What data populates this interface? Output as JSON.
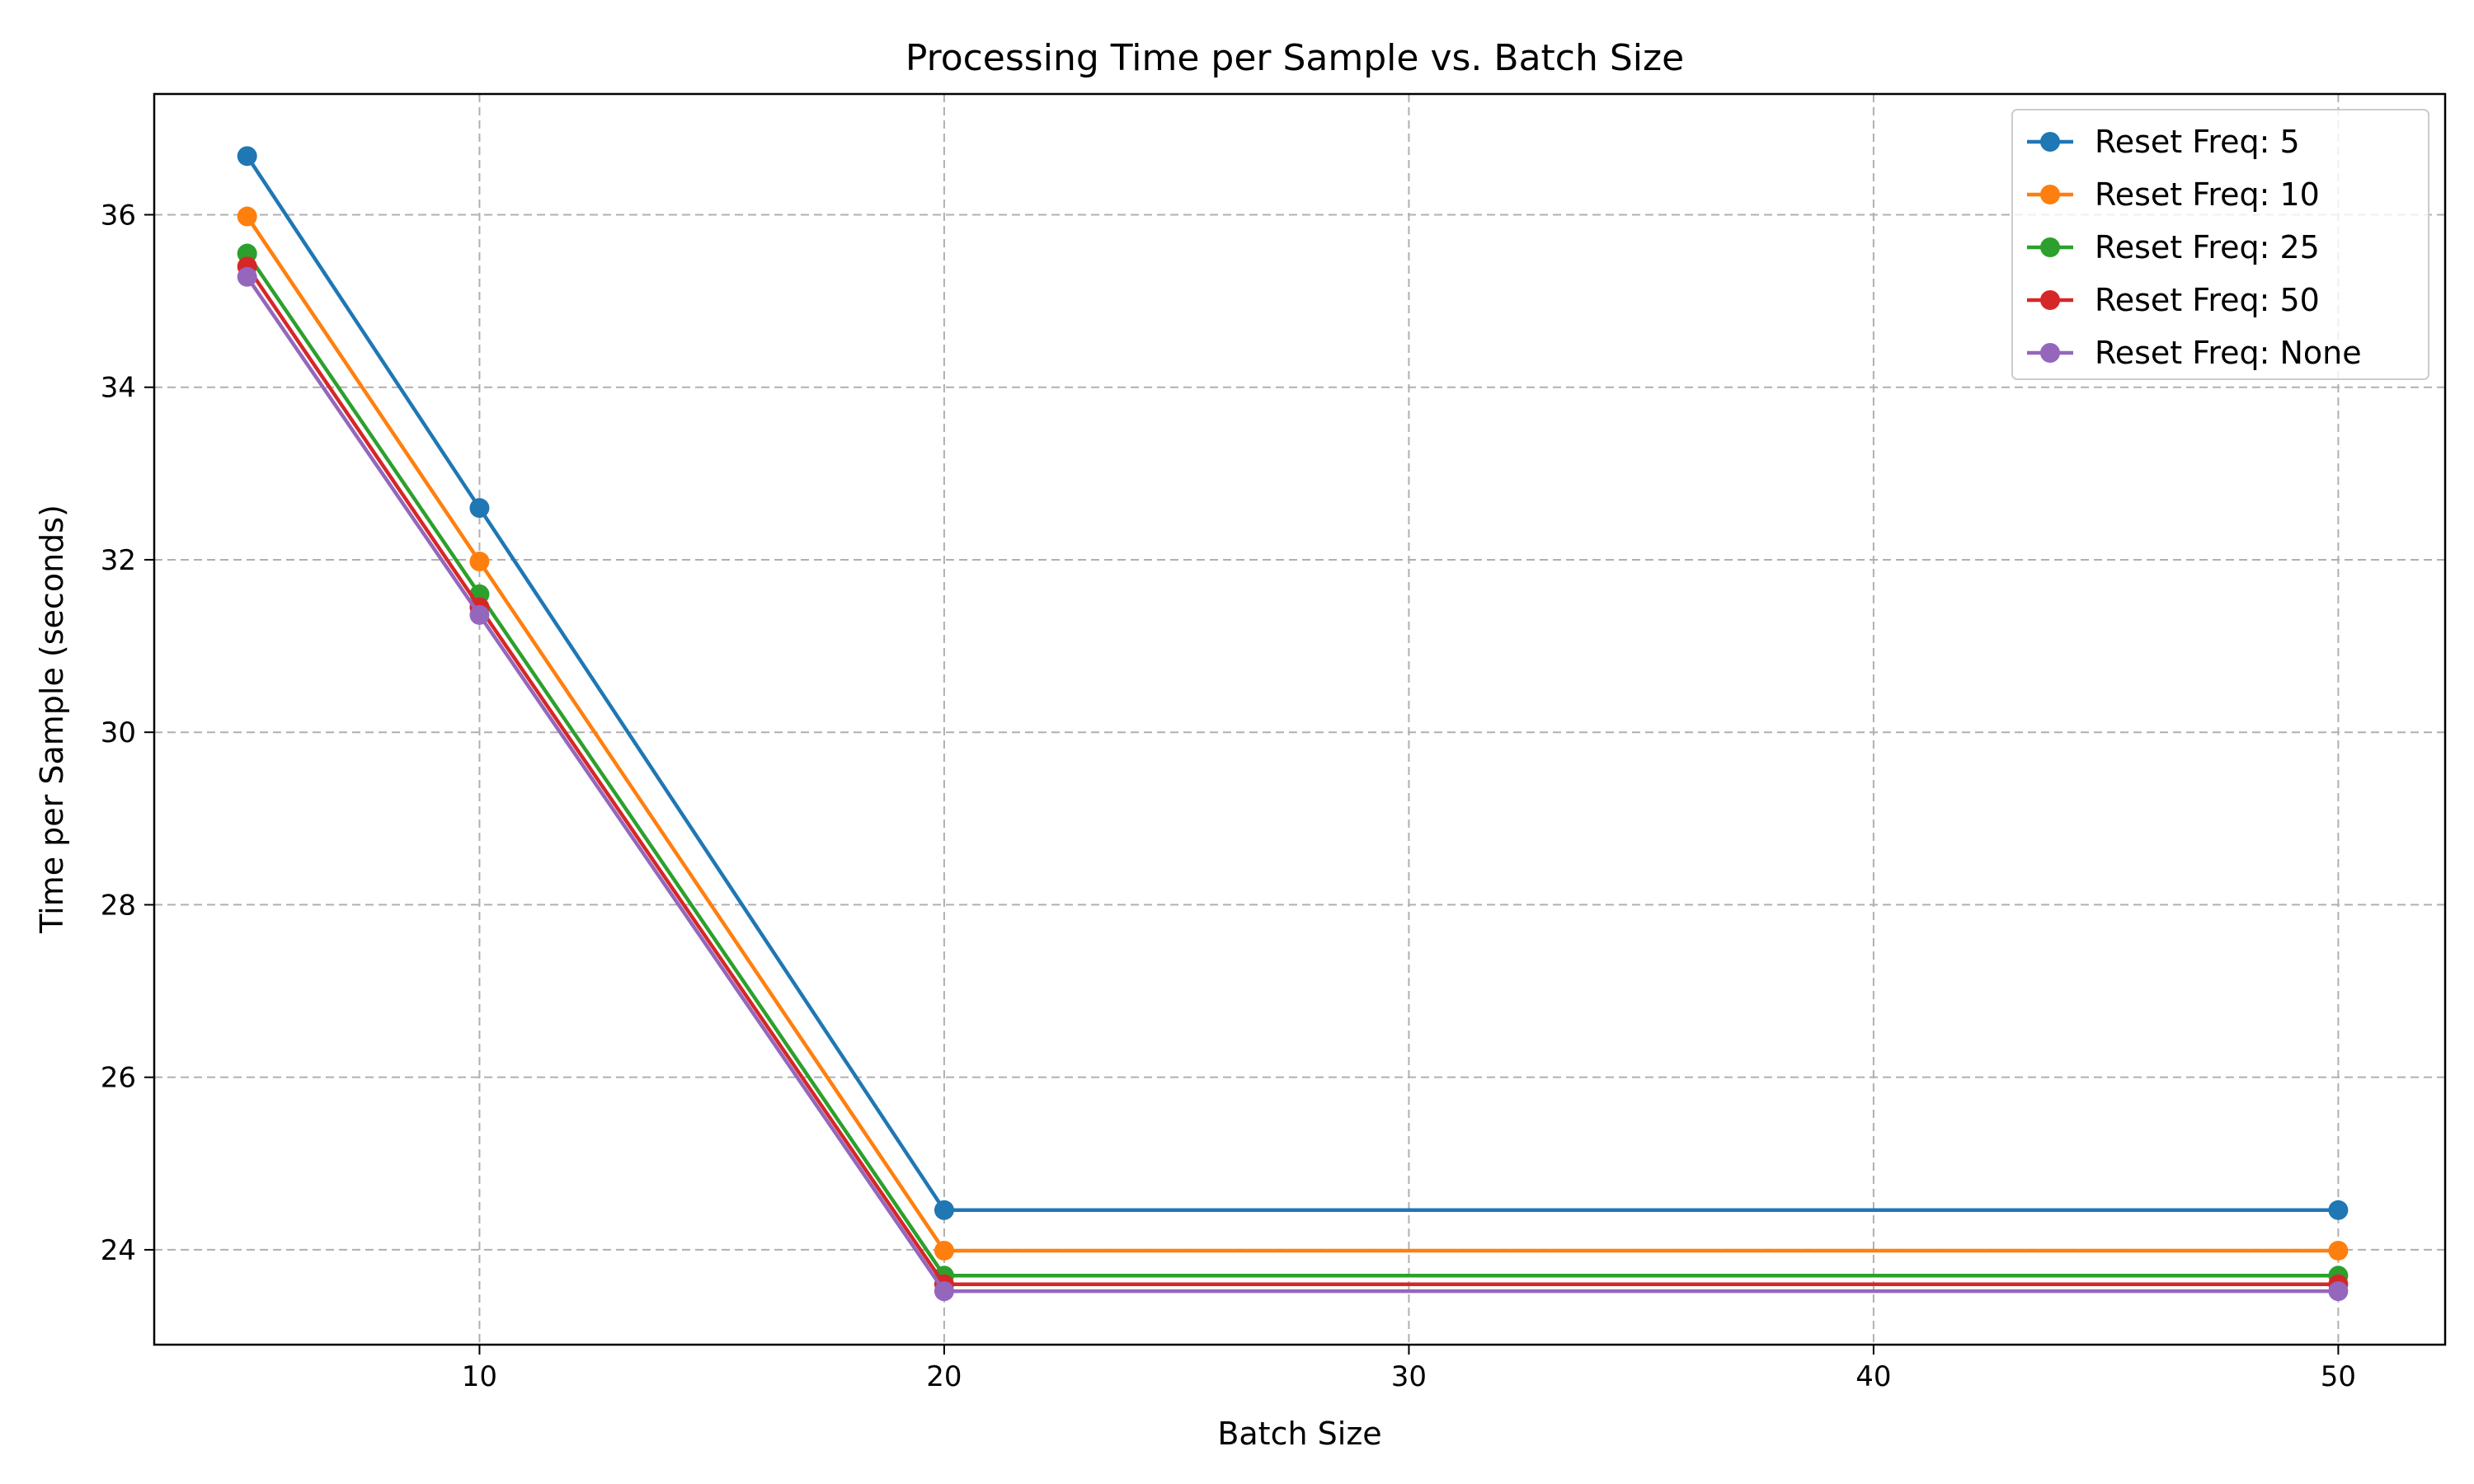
{
  "chart_data": {
    "type": "line",
    "title": "Processing Time per Sample vs. Batch Size",
    "xlabel": "Batch Size",
    "ylabel": "Time per Sample (seconds)",
    "x": [
      5,
      10,
      20,
      50
    ],
    "xlim": [
      3,
      52.3
    ],
    "ylim": [
      22.9,
      37.4
    ],
    "xticks": [
      10,
      20,
      30,
      40,
      50
    ],
    "yticks": [
      24,
      26,
      28,
      30,
      32,
      34,
      36
    ],
    "grid": true,
    "legend_position": "top-right",
    "series": [
      {
        "name": "Reset Freq: 5",
        "color": "#1f77b4",
        "values": [
          36.68,
          32.6,
          24.46,
          24.46
        ]
      },
      {
        "name": "Reset Freq: 10",
        "color": "#ff7f0e",
        "values": [
          35.98,
          31.98,
          23.99,
          23.99
        ]
      },
      {
        "name": "Reset Freq: 25",
        "color": "#2ca02c",
        "values": [
          35.55,
          31.6,
          23.7,
          23.7
        ]
      },
      {
        "name": "Reset Freq: 50",
        "color": "#d62728",
        "values": [
          35.4,
          31.45,
          23.6,
          23.6
        ]
      },
      {
        "name": "Reset Freq: None",
        "color": "#9467bd",
        "values": [
          35.28,
          31.36,
          23.52,
          23.52
        ]
      }
    ]
  }
}
